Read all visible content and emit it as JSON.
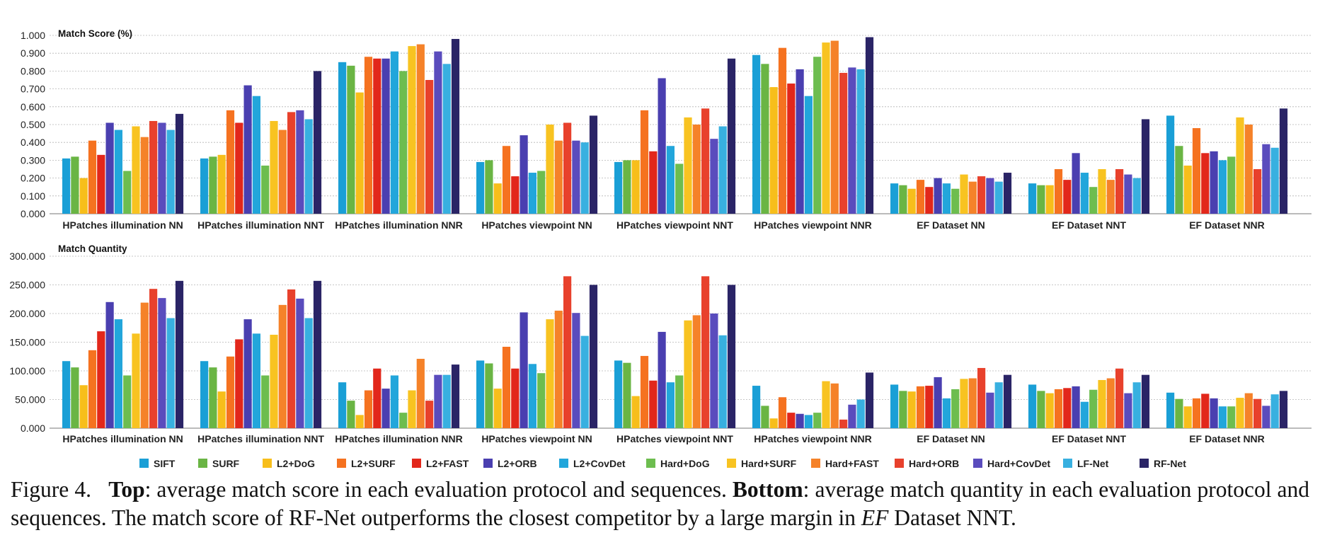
{
  "chart_data": [
    {
      "type": "bar",
      "title": "Match Score (%)",
      "ylim": [
        0,
        1.0
      ],
      "yticks": [
        "0.000",
        "0.100",
        "0.200",
        "0.300",
        "0.400",
        "0.500",
        "0.600",
        "0.700",
        "0.800",
        "0.900",
        "1.000"
      ],
      "grid": true,
      "legend": "bottom",
      "categories": [
        "HPatches illumination NN",
        "HPatches illumination NNT",
        "HPatches illumination NNR",
        "HPatches viewpoint NN",
        "HPatches viewpoint NNT",
        "HPatches viewpoint NNR",
        "EF Dataset NN",
        "EF Dataset NNT",
        "EF Dataset NNR"
      ],
      "series": [
        {
          "name": "SIFT",
          "values": [
            0.31,
            0.31,
            0.85,
            0.29,
            0.29,
            0.89,
            0.17,
            0.17,
            0.55
          ]
        },
        {
          "name": "SURF",
          "values": [
            0.32,
            0.32,
            0.83,
            0.3,
            0.3,
            0.84,
            0.16,
            0.16,
            0.38
          ]
        },
        {
          "name": "L2+DoG",
          "values": [
            0.2,
            0.33,
            0.68,
            0.17,
            0.3,
            0.71,
            0.14,
            0.16,
            0.27
          ]
        },
        {
          "name": "L2+SURF",
          "values": [
            0.41,
            0.58,
            0.88,
            0.38,
            0.58,
            0.93,
            0.19,
            0.25,
            0.48
          ]
        },
        {
          "name": "L2+FAST",
          "values": [
            0.33,
            0.51,
            0.87,
            0.21,
            0.35,
            0.73,
            0.15,
            0.19,
            0.34
          ]
        },
        {
          "name": "L2+ORB",
          "values": [
            0.51,
            0.72,
            0.87,
            0.44,
            0.76,
            0.81,
            0.2,
            0.34,
            0.35
          ]
        },
        {
          "name": "L2+CovDet",
          "values": [
            0.47,
            0.66,
            0.91,
            0.23,
            0.38,
            0.66,
            0.17,
            0.23,
            0.3
          ]
        },
        {
          "name": "Hard+DoG",
          "values": [
            0.24,
            0.27,
            0.8,
            0.24,
            0.28,
            0.88,
            0.14,
            0.15,
            0.32
          ]
        },
        {
          "name": "Hard+SURF",
          "values": [
            0.49,
            0.52,
            0.94,
            0.5,
            0.54,
            0.96,
            0.22,
            0.25,
            0.54
          ]
        },
        {
          "name": "Hard+FAST",
          "values": [
            0.43,
            0.47,
            0.95,
            0.41,
            0.5,
            0.97,
            0.18,
            0.19,
            0.5
          ]
        },
        {
          "name": "Hard+ORB",
          "values": [
            0.52,
            0.57,
            0.75,
            0.51,
            0.59,
            0.79,
            0.21,
            0.25,
            0.25
          ]
        },
        {
          "name": "Hard+CovDet",
          "values": [
            0.51,
            0.58,
            0.91,
            0.41,
            0.42,
            0.82,
            0.2,
            0.22,
            0.39
          ]
        },
        {
          "name": "LF-Net",
          "values": [
            0.47,
            0.53,
            0.84,
            0.4,
            0.49,
            0.81,
            0.18,
            0.2,
            0.37
          ]
        },
        {
          "name": "RF-Net",
          "values": [
            0.56,
            0.8,
            0.98,
            0.55,
            0.87,
            0.99,
            0.23,
            0.53,
            0.59
          ]
        }
      ]
    },
    {
      "type": "bar",
      "title": "Match Quantity",
      "ylim": [
        0,
        300
      ],
      "yticks": [
        "0.000",
        "50.000",
        "100.000",
        "150.000",
        "200.000",
        "250.000",
        "300.000"
      ],
      "grid": true,
      "legend": "bottom",
      "categories": [
        "HPatches illumination NN",
        "HPatches illumination NNT",
        "HPatches illumination NNR",
        "HPatches viewpoint NN",
        "HPatches viewpoint NNT",
        "HPatches viewpoint NNR",
        "EF Dataset NN",
        "EF Dataset NNT",
        "EF Dataset NNR"
      ],
      "series": [
        {
          "name": "SIFT",
          "values": [
            117,
            117,
            80,
            118,
            118,
            74,
            76,
            76,
            62
          ]
        },
        {
          "name": "SURF",
          "values": [
            106,
            106,
            48,
            113,
            114,
            39,
            65,
            65,
            51
          ]
        },
        {
          "name": "L2+DoG",
          "values": [
            75,
            64,
            23,
            69,
            56,
            17,
            64,
            61,
            38
          ]
        },
        {
          "name": "L2+SURF",
          "values": [
            136,
            125,
            66,
            142,
            126,
            54,
            73,
            68,
            52
          ]
        },
        {
          "name": "L2+FAST",
          "values": [
            169,
            155,
            104,
            104,
            83,
            27,
            74,
            70,
            60
          ]
        },
        {
          "name": "L2+ORB",
          "values": [
            220,
            190,
            69,
            202,
            168,
            25,
            89,
            73,
            52
          ]
        },
        {
          "name": "L2+CovDet",
          "values": [
            190,
            165,
            92,
            112,
            80,
            23,
            52,
            46,
            38
          ]
        },
        {
          "name": "Hard+DoG",
          "values": [
            92,
            92,
            27,
            96,
            92,
            27,
            68,
            67,
            38
          ]
        },
        {
          "name": "Hard+SURF",
          "values": [
            165,
            163,
            66,
            190,
            188,
            82,
            86,
            84,
            53
          ]
        },
        {
          "name": "Hard+FAST",
          "values": [
            219,
            215,
            121,
            205,
            197,
            78,
            87,
            87,
            61
          ]
        },
        {
          "name": "Hard+ORB",
          "values": [
            243,
            242,
            48,
            265,
            265,
            15,
            105,
            104,
            51
          ]
        },
        {
          "name": "Hard+CovDet",
          "values": [
            227,
            226,
            93,
            201,
            200,
            41,
            62,
            61,
            39
          ]
        },
        {
          "name": "LF-Net",
          "values": [
            192,
            192,
            93,
            161,
            162,
            50,
            80,
            80,
            59
          ]
        },
        {
          "name": "RF-Net",
          "values": [
            257,
            257,
            111,
            250,
            250,
            97,
            93,
            93,
            65
          ]
        }
      ]
    }
  ],
  "colors": [
    "#1a9fd6",
    "#6ab544",
    "#f7be1b",
    "#f57220",
    "#e2271b",
    "#4a3fb0",
    "#22a6db",
    "#6dbd4f",
    "#f8c321",
    "#f58229",
    "#e8412c",
    "#5a4cbd",
    "#38b0e0",
    "#2a2466"
  ],
  "caption": {
    "label": "Figure 4.",
    "top_label": "Top",
    "top_text": ": average match score in each evaluation protocol and sequences.",
    "bottom_label": "Bottom",
    "bottom_text": ": average match quantity in each evaluation protocol and sequences. The match score of RF-Net outperforms the closest competitor by a large margin in",
    "italic": "EF",
    "tail": "Dataset NNT."
  }
}
